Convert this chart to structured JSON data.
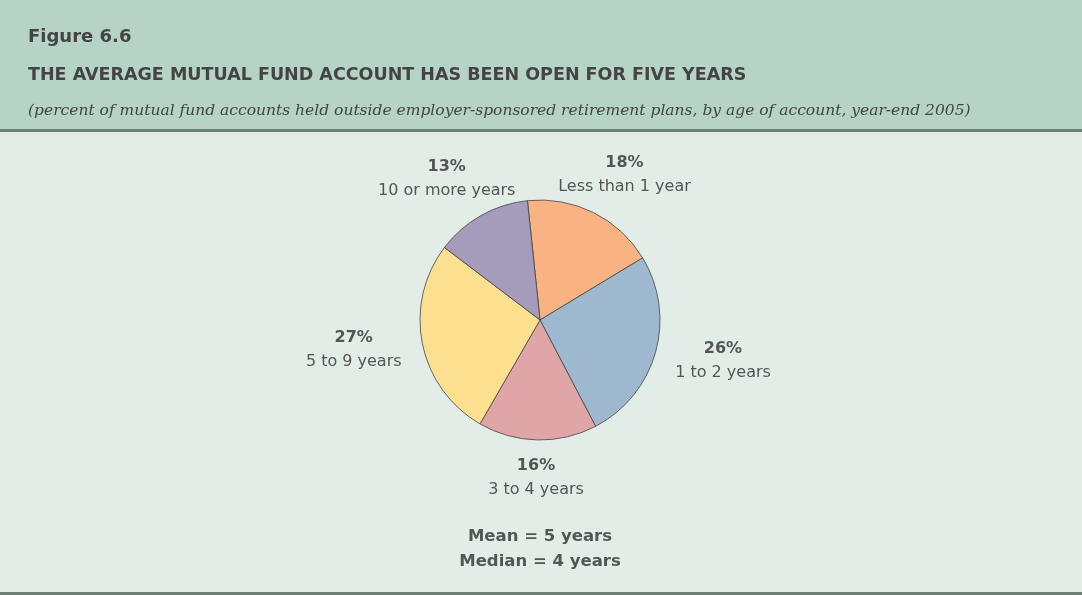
{
  "chart_data": {
    "type": "pie",
    "title": "Figure 6.6",
    "subtitle": "THE AVERAGE MUTUAL FUND ACCOUNT HAS BEEN OPEN FOR FIVE YEARS",
    "annotations": [
      "(percent of mutual fund accounts held outside employer-sponsored retirement plans, by age of account, year-end 2005)",
      "Mean = 5 years",
      "Median = 4 years"
    ],
    "categories": [
      "Less than 1 year",
      "1 to 2 years",
      "3 to 4 years",
      "5 to 9 years",
      "10 or more years"
    ],
    "values": [
      18,
      26,
      16,
      27,
      13
    ],
    "colors": [
      "#f9b383",
      "#9db8cf",
      "#e0a5a7",
      "#fde08f",
      "#a59bba"
    ],
    "value_labels": [
      "18%",
      "26%",
      "16%",
      "27%",
      "13%"
    ]
  }
}
